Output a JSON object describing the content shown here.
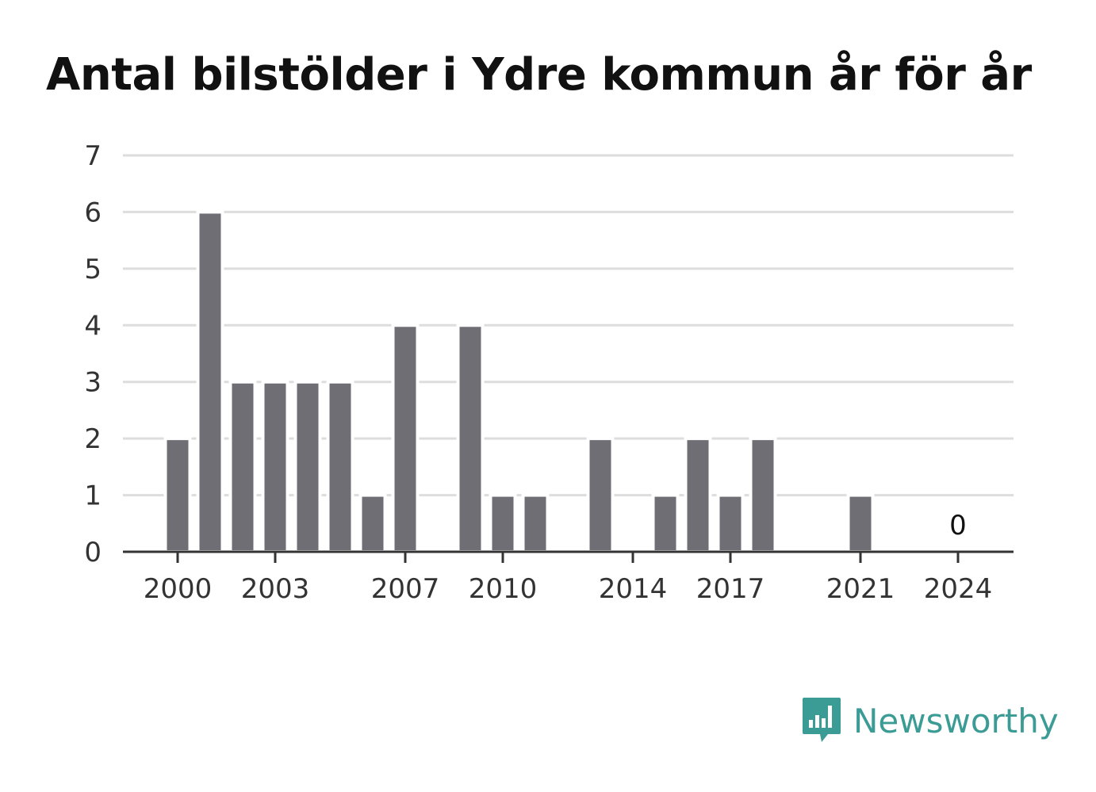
{
  "chart_data": {
    "type": "bar",
    "title": "Antal bilstölder i Ydre kommun år för år",
    "x": [
      2000,
      2001,
      2002,
      2003,
      2004,
      2005,
      2006,
      2007,
      2008,
      2009,
      2010,
      2011,
      2012,
      2013,
      2014,
      2015,
      2016,
      2017,
      2018,
      2019,
      2020,
      2021,
      2022,
      2023,
      2024
    ],
    "values": [
      2,
      6,
      3,
      3,
      3,
      3,
      1,
      4,
      0,
      4,
      1,
      1,
      0,
      2,
      0,
      1,
      2,
      1,
      2,
      0,
      0,
      1,
      0,
      0,
      0
    ],
    "x_tick_labels": [
      "2000",
      "2003",
      "2007",
      "2010",
      "2014",
      "2017",
      "2021",
      "2024"
    ],
    "y_tick_labels": [
      "0",
      "1",
      "2",
      "3",
      "4",
      "5",
      "6",
      "7"
    ],
    "ylim": [
      0,
      7
    ],
    "annotations": [
      {
        "x": 2024,
        "text": "0"
      }
    ],
    "grid": true,
    "bar_color": "#6f6e75",
    "xlabel": "",
    "ylabel": ""
  },
  "brand": {
    "name": "Newsworthy",
    "icon": "newsworthy-logo-icon",
    "color": "#3b9b95"
  }
}
